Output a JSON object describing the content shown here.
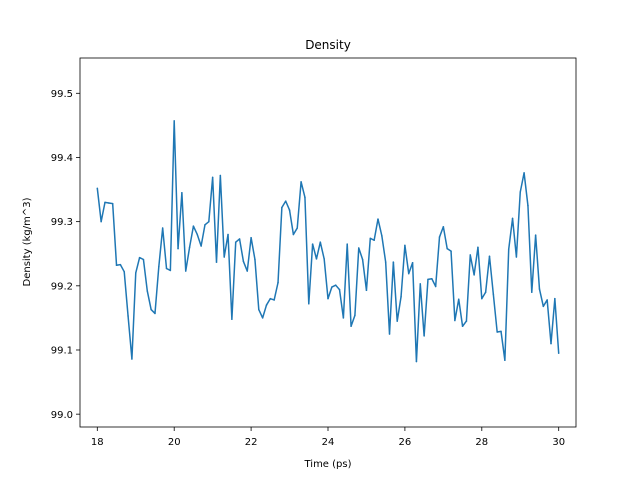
{
  "chart_data": {
    "type": "line",
    "title": "Density",
    "xlabel": "Time (ps)",
    "ylabel": "Density (kg/m^3)",
    "xlim": [
      17.55,
      30.45
    ],
    "ylim": [
      98.98,
      99.555
    ],
    "xticks": [
      18,
      20,
      22,
      24,
      26,
      28,
      30
    ],
    "xtick_labels": [
      "18",
      "20",
      "22",
      "24",
      "26",
      "28",
      "30"
    ],
    "yticks": [
      99.0,
      99.1,
      99.2,
      99.3,
      99.4,
      99.5
    ],
    "ytick_labels": [
      "99.0",
      "99.1",
      "99.2",
      "99.3",
      "99.4",
      "99.5"
    ],
    "grid": false,
    "line_color": "#1f77b4",
    "series": [
      {
        "x": [
          18.0,
          18.1,
          18.2,
          18.3,
          18.4,
          18.5,
          18.6,
          18.7,
          18.8,
          18.9,
          19.0,
          19.1,
          19.2,
          19.3,
          19.4,
          19.5,
          19.6,
          19.7,
          19.8,
          19.9,
          20.0,
          20.1,
          20.2,
          20.3,
          20.4,
          20.5,
          20.6,
          20.7,
          20.8,
          20.9,
          21.0,
          21.1,
          21.2,
          21.3,
          21.4,
          21.5,
          21.6,
          21.7,
          21.8,
          21.9,
          22.0,
          22.1,
          22.2,
          22.3,
          22.4,
          22.5,
          22.6,
          22.7,
          22.8,
          22.9,
          23.0,
          23.1,
          23.2,
          23.3,
          23.4,
          23.5,
          23.6,
          23.7,
          23.8,
          23.9,
          24.0,
          24.1,
          24.2,
          24.3,
          24.4,
          24.5,
          24.6,
          24.7,
          24.8,
          24.9,
          25.0,
          25.1,
          25.2,
          25.3,
          25.4,
          25.5,
          25.6,
          25.7,
          25.8,
          25.9,
          26.0,
          26.1,
          26.2,
          26.3,
          26.4,
          26.5,
          26.6,
          26.7,
          26.8,
          26.9,
          27.0,
          27.1,
          27.2,
          27.3,
          27.4,
          27.5,
          27.6,
          27.7,
          27.8,
          27.9,
          28.0,
          28.1,
          28.2,
          28.3,
          28.4,
          28.5,
          28.6,
          28.7,
          28.8,
          28.9,
          29.0,
          29.1,
          29.2,
          29.3,
          29.4,
          29.5,
          29.6,
          29.7,
          29.8,
          29.9,
          30.0
        ],
        "y": [
          99.352,
          99.3,
          99.33,
          99.329,
          99.328,
          99.232,
          99.233,
          99.222,
          99.153,
          99.086,
          99.22,
          99.244,
          99.241,
          99.192,
          99.163,
          99.157,
          99.23,
          99.29,
          99.227,
          99.224,
          99.457,
          99.258,
          99.345,
          99.223,
          99.26,
          99.293,
          99.28,
          99.262,
          99.295,
          99.3,
          99.369,
          99.237,
          99.372,
          99.245,
          99.28,
          99.148,
          99.268,
          99.273,
          99.238,
          99.223,
          99.275,
          99.241,
          99.163,
          99.15,
          99.17,
          99.18,
          99.178,
          99.205,
          99.322,
          99.332,
          99.318,
          99.28,
          99.29,
          99.362,
          99.338,
          99.172,
          99.265,
          99.242,
          99.268,
          99.242,
          99.18,
          99.198,
          99.201,
          99.194,
          99.15,
          99.265,
          99.137,
          99.154,
          99.259,
          99.241,
          99.193,
          99.274,
          99.271,
          99.304,
          99.278,
          99.237,
          99.125,
          99.237,
          99.145,
          99.183,
          99.263,
          99.219,
          99.236,
          99.082,
          99.203,
          99.122,
          99.21,
          99.211,
          99.199,
          99.276,
          99.292,
          99.258,
          99.254,
          99.146,
          99.179,
          99.137,
          99.145,
          99.248,
          99.217,
          99.26,
          99.18,
          99.19,
          99.246,
          99.187,
          99.128,
          99.129,
          99.084,
          99.257,
          99.305,
          99.245,
          99.346,
          99.376,
          99.325,
          99.19,
          99.279,
          99.195,
          99.168,
          99.178,
          99.11,
          99.18,
          99.095
        ]
      }
    ]
  }
}
